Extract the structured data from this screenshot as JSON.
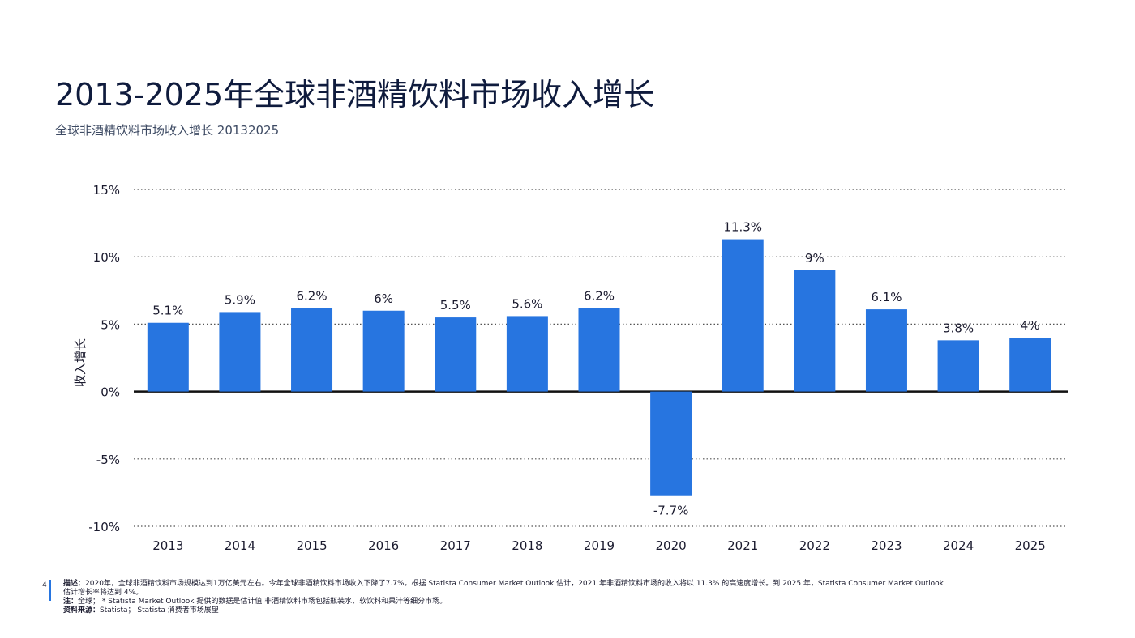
{
  "header": {
    "title": "2013-2025年全球非酒精饮料市场收入增长",
    "subtitle": "全球非酒精饮料市场收入增长 20132025"
  },
  "colors": {
    "bar": "#2775e0",
    "axis": "#111111",
    "grid": "#555555"
  },
  "chart_data": {
    "type": "bar",
    "categories": [
      "2013",
      "2014",
      "2015",
      "2016",
      "2017",
      "2018",
      "2019",
      "2020",
      "2021",
      "2022",
      "2023",
      "2024",
      "2025"
    ],
    "values": [
      5.1,
      5.9,
      6.2,
      6.0,
      5.5,
      5.6,
      6.2,
      -7.7,
      11.3,
      9.0,
      6.1,
      3.8,
      4.0
    ],
    "data_labels": [
      "5.1%",
      "5.9%",
      "6.2%",
      "6%",
      "5.5%",
      "5.6%",
      "6.2%",
      "-7.7%",
      "11.3%",
      "9%",
      "6.1%",
      "3.8%",
      "4%"
    ],
    "ylabel": "收入增长",
    "ylim": [
      -10,
      15
    ],
    "yticks": [
      15,
      10,
      5,
      0,
      -5,
      -10
    ],
    "ytick_labels": [
      "15%",
      "10%",
      "5%",
      "0%",
      "-5%",
      "-10%"
    ],
    "grid": true,
    "grid_style": "dotted"
  },
  "footer": {
    "page_number": "4",
    "description_label": "描述：",
    "description": "2020年，全球非酒精饮料市场规模达到1万亿美元左右。今年全球非酒精饮料市场收入下降了7.7%。根据 Statista Consumer Market Outlook 估计，2021 年非酒精饮料市场的收入将以 11.3% 的高速度增长。到 2025 年，Statista Consumer Market Outlook 估计增长率将达到 4%。",
    "note_label": "注：",
    "note": "全球； * Statista Market Outlook 提供的数据是估计值 非酒精饮料市场包括瓶装水、软饮料和果汁等细分市场。",
    "source_label": "资料来源：",
    "source": "Statista； Statista 消费者市场展望"
  }
}
